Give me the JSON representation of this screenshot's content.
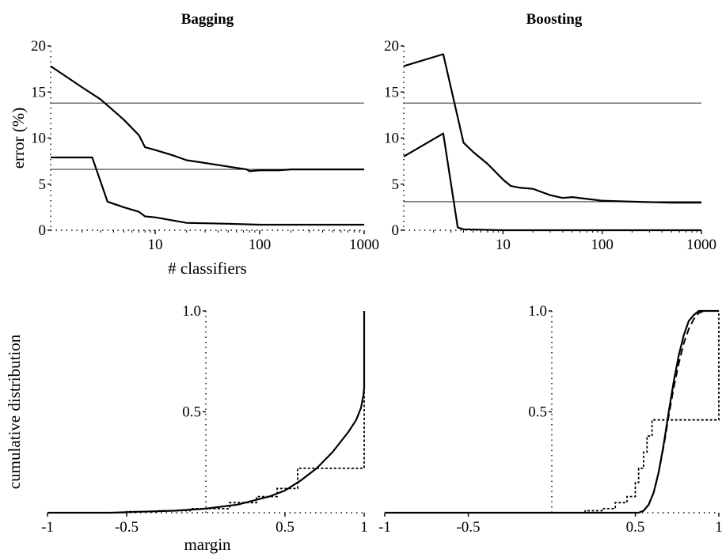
{
  "chart_data": [
    {
      "id": "bagging-error",
      "type": "line",
      "title": "Bagging",
      "xlabel": "# classifiers",
      "ylabel": "error (%)",
      "xscale": "log",
      "xlim": [
        1,
        1000
      ],
      "ylim": [
        0,
        20
      ],
      "xticks": [
        10,
        100,
        1000
      ],
      "yticks": [
        0,
        5,
        10,
        15,
        20
      ],
      "series": [
        {
          "style": "solid",
          "x": [
            1,
            2,
            3,
            5,
            7,
            8,
            10,
            15,
            20,
            30,
            50,
            75,
            80,
            100,
            150,
            200,
            300,
            500,
            700,
            1000
          ],
          "y": [
            17.8,
            15.5,
            14.2,
            12.0,
            10.3,
            9.0,
            8.7,
            8.1,
            7.6,
            7.3,
            6.9,
            6.6,
            6.4,
            6.5,
            6.5,
            6.6,
            6.6,
            6.6,
            6.6,
            6.6
          ]
        },
        {
          "style": "solid",
          "x": [
            1,
            2.5,
            3.5,
            5,
            7,
            8,
            10,
            20,
            50,
            100,
            300,
            1000
          ],
          "y": [
            7.9,
            7.9,
            3.1,
            2.5,
            2.0,
            1.5,
            1.4,
            0.8,
            0.7,
            0.6,
            0.6,
            0.6
          ]
        },
        {
          "style": "reference",
          "x": [
            1,
            1000
          ],
          "y": [
            13.8,
            13.8
          ]
        },
        {
          "style": "reference",
          "x": [
            1,
            1000
          ],
          "y": [
            6.6,
            6.6
          ]
        }
      ]
    },
    {
      "id": "boosting-error",
      "type": "line",
      "title": "Boosting",
      "xlabel": "",
      "ylabel": "",
      "xscale": "log",
      "xlim": [
        1,
        1000
      ],
      "ylim": [
        0,
        20
      ],
      "xticks": [
        10,
        100,
        1000
      ],
      "yticks": [
        0,
        5,
        10,
        15,
        20
      ],
      "series": [
        {
          "style": "solid",
          "x": [
            1,
            2.5,
            4,
            5,
            7,
            10,
            12,
            15,
            20,
            30,
            40,
            50,
            70,
            100,
            200,
            500,
            1000
          ],
          "y": [
            17.8,
            19.1,
            9.5,
            8.5,
            7.2,
            5.5,
            4.8,
            4.6,
            4.5,
            3.8,
            3.5,
            3.6,
            3.4,
            3.2,
            3.1,
            3.0,
            3.0
          ]
        },
        {
          "style": "solid",
          "x": [
            1,
            2.5,
            3.5,
            4,
            10,
            100,
            1000
          ],
          "y": [
            8.0,
            10.5,
            0.3,
            0.1,
            0.0,
            0.0,
            0.0
          ]
        },
        {
          "style": "reference",
          "x": [
            1,
            1000
          ],
          "y": [
            13.8,
            13.8
          ]
        },
        {
          "style": "reference",
          "x": [
            1,
            1000
          ],
          "y": [
            3.1,
            3.1
          ]
        }
      ]
    },
    {
      "id": "bagging-margin",
      "type": "line",
      "title": "",
      "xlabel": "margin",
      "ylabel": "cumulative distribution",
      "xlim": [
        -1,
        1
      ],
      "ylim": [
        0,
        1
      ],
      "xticks": [
        -1,
        -0.5,
        0.5,
        1
      ],
      "xticklabels": [
        "-1",
        "-0.5",
        "0.5",
        "1"
      ],
      "yticks": [
        0.5,
        1.0
      ],
      "yticklabels": [
        "0.5",
        "1.0"
      ],
      "series": [
        {
          "style": "solid",
          "x": [
            -1,
            -0.6,
            -0.4,
            -0.2,
            0,
            0.2,
            0.3,
            0.4,
            0.5,
            0.6,
            0.7,
            0.8,
            0.9,
            0.95,
            0.98,
            0.995,
            1.0,
            1.0
          ],
          "y": [
            0,
            0,
            0.005,
            0.01,
            0.02,
            0.04,
            0.06,
            0.08,
            0.11,
            0.16,
            0.22,
            0.3,
            0.4,
            0.46,
            0.52,
            0.58,
            0.62,
            1.0
          ]
        },
        {
          "style": "dotted",
          "step": true,
          "x": [
            -1,
            -0.5,
            -0.3,
            -0.1,
            0.15,
            0.32,
            0.45,
            0.58,
            0.65,
            0.8,
            0.96,
            1.0,
            1.0
          ],
          "y": [
            0,
            0.005,
            0.01,
            0.02,
            0.05,
            0.08,
            0.12,
            0.22,
            0.22,
            0.22,
            0.22,
            0.5,
            1.0
          ]
        }
      ]
    },
    {
      "id": "boosting-margin",
      "type": "line",
      "title": "",
      "xlabel": "",
      "ylabel": "",
      "xlim": [
        -1,
        1
      ],
      "ylim": [
        0,
        1
      ],
      "xticks": [
        -1,
        -0.5,
        0.5,
        1
      ],
      "xticklabels": [
        "-1",
        "-0.5",
        "0.5",
        "1"
      ],
      "yticks": [
        0.5,
        1.0
      ],
      "yticklabels": [
        "0.5",
        "1.0"
      ],
      "series": [
        {
          "style": "solid",
          "x": [
            -1,
            0.52,
            0.55,
            0.58,
            0.61,
            0.64,
            0.67,
            0.7,
            0.73,
            0.76,
            0.79,
            0.82,
            0.85,
            0.88,
            0.91,
            1.0
          ],
          "y": [
            0,
            0,
            0.01,
            0.04,
            0.1,
            0.2,
            0.34,
            0.5,
            0.65,
            0.78,
            0.88,
            0.95,
            0.98,
            1.0,
            1.0,
            1.0
          ]
        },
        {
          "style": "dashed",
          "x": [
            0.52,
            0.55,
            0.58,
            0.61,
            0.64,
            0.67,
            0.7,
            0.73,
            0.76,
            0.79,
            0.82,
            0.85,
            0.88,
            0.91,
            0.94,
            1.0
          ],
          "y": [
            0,
            0.01,
            0.04,
            0.1,
            0.2,
            0.33,
            0.48,
            0.62,
            0.74,
            0.84,
            0.91,
            0.96,
            0.99,
            1.0,
            1.0,
            1.0
          ]
        },
        {
          "style": "dotted",
          "step": true,
          "x": [
            -1,
            0.2,
            0.3,
            0.38,
            0.45,
            0.5,
            0.52,
            0.55,
            0.57,
            0.6,
            0.7,
            0.82,
            0.9,
            1.0,
            1.0
          ],
          "y": [
            0,
            0.01,
            0.02,
            0.05,
            0.08,
            0.15,
            0.22,
            0.3,
            0.38,
            0.46,
            0.46,
            0.46,
            0.46,
            0.46,
            1.0
          ]
        }
      ]
    }
  ]
}
